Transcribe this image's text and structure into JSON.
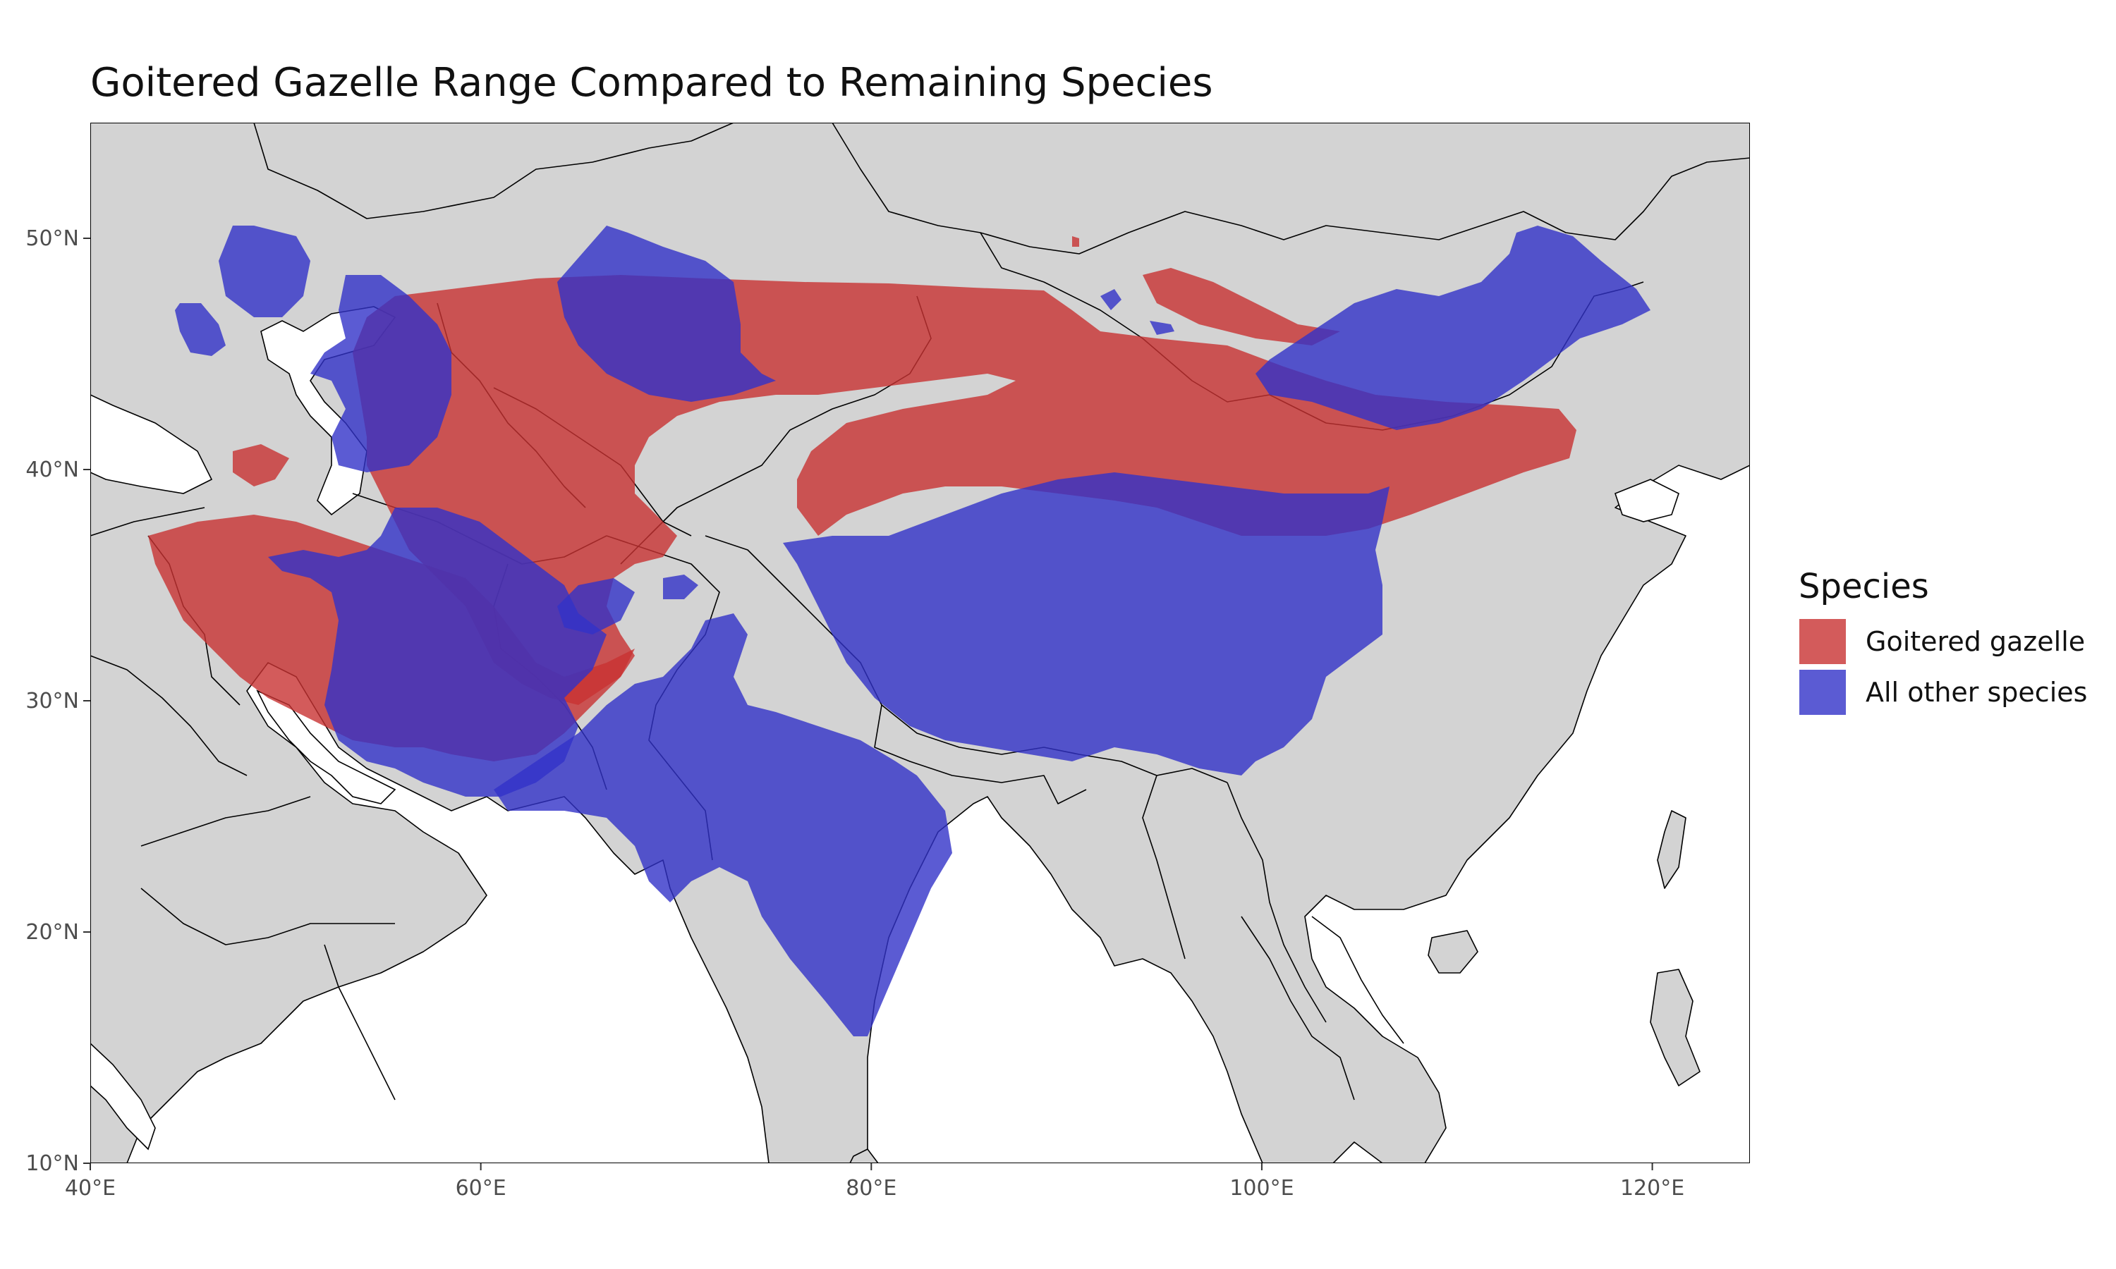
{
  "title": "Goitered Gazelle Range Compared to Remaining Species",
  "map": {
    "x_axis": {
      "range": [
        40,
        125
      ],
      "ticks": [
        40,
        60,
        80,
        100,
        120
      ],
      "labels": [
        "40°E",
        "60°E",
        "80°E",
        "100°E",
        "120°E"
      ]
    },
    "y_axis": {
      "range": [
        10,
        55
      ],
      "ticks": [
        10,
        20,
        30,
        40,
        50
      ],
      "labels": [
        "10°N",
        "20°N",
        "30°N",
        "40°N",
        "50°N"
      ]
    },
    "background_land": "#d3d3d3",
    "background_sea": "#ffffff",
    "panel_border": true,
    "legend_position": "right"
  },
  "legend": {
    "title": "Species",
    "items": [
      {
        "label": "Goitered gazelle",
        "color": "#c83232"
      },
      {
        "label": "All other species",
        "color": "#3232c8"
      }
    ]
  },
  "layers": [
    {
      "name": "Goitered gazelle",
      "color": "#c83232",
      "opacity": 0.8
    },
    {
      "name": "All other species",
      "color": "#3232c8",
      "opacity": 0.8
    }
  ]
}
